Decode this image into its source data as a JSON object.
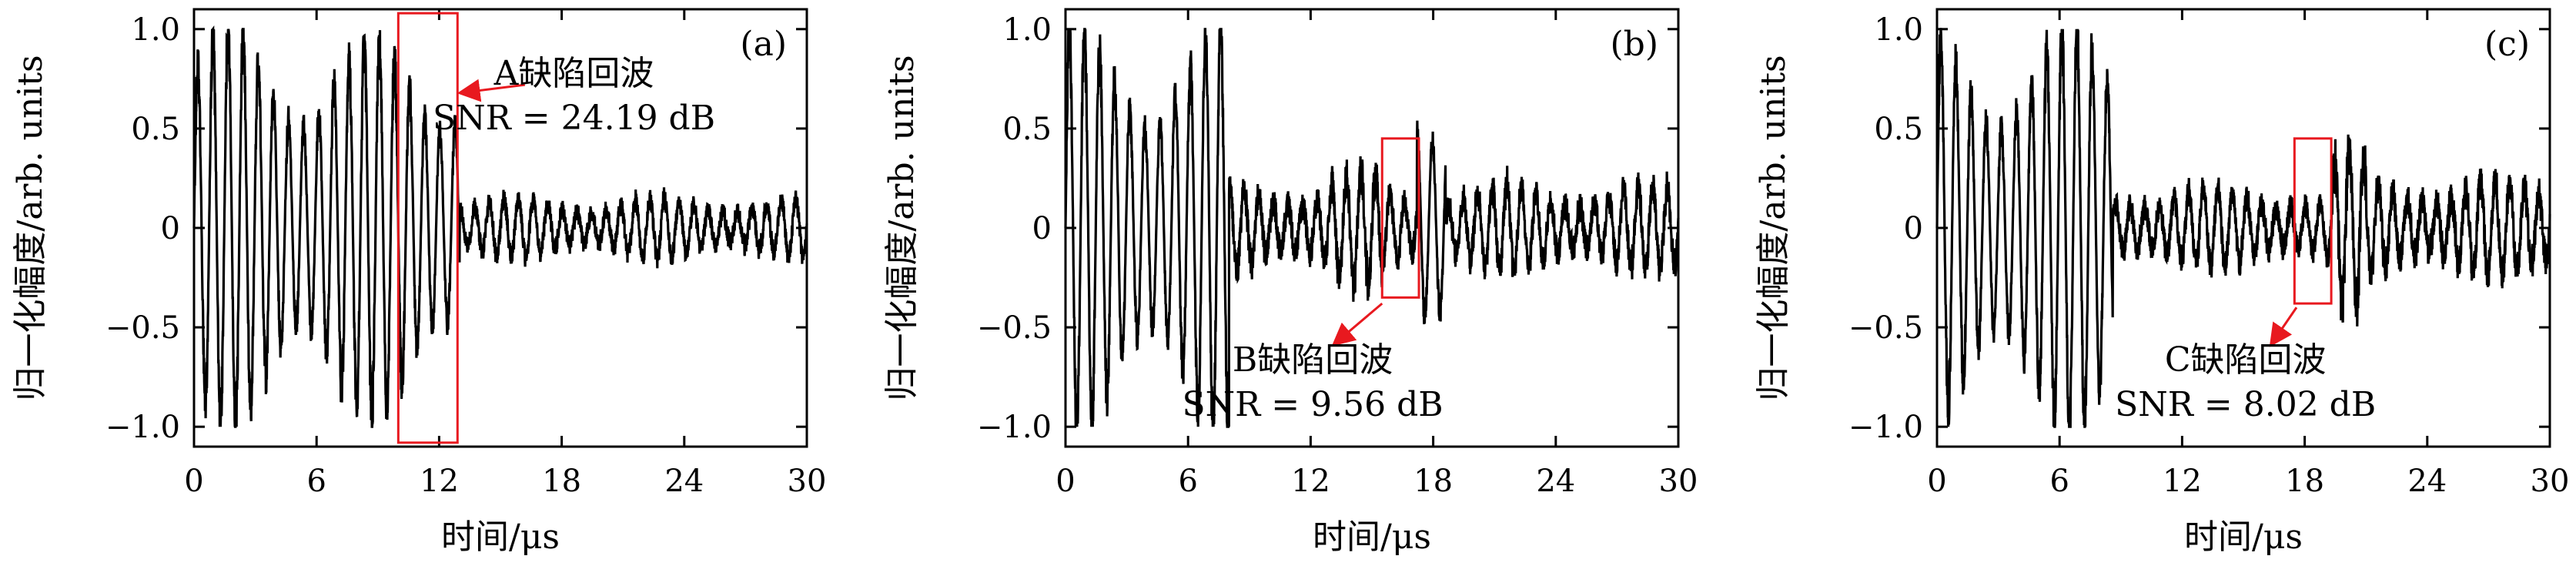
{
  "colors": {
    "signal": "#000000",
    "highlight": "#e8191f",
    "axis": "#000000"
  },
  "chart_data": [
    {
      "type": "line",
      "panel_label": "(a)",
      "xlabel": "时间/μs",
      "ylabel": "归一化幅度/arb. units",
      "xlim": [
        0,
        30
      ],
      "ylim": [
        -1.1,
        1.1
      ],
      "xticks": [
        "0",
        "6",
        "12",
        "18",
        "24",
        "30"
      ],
      "yticks": [
        "−1.0",
        "−0.5",
        "0",
        "0.5",
        "1.0"
      ],
      "signal": {
        "description_points": [
          [
            0.0,
            0.0
          ],
          [
            0.5,
            0.9
          ],
          [
            1.5,
            1.0
          ],
          [
            2.5,
            0.95
          ],
          [
            3.5,
            -0.9
          ],
          [
            4.5,
            0.95
          ],
          [
            5.5,
            0.85
          ],
          [
            6.5,
            0.6
          ],
          [
            7.2,
            0.2
          ],
          [
            8.5,
            0.93
          ],
          [
            9.5,
            0.3
          ],
          [
            11.0,
            0.75
          ],
          [
            11.5,
            0.9
          ],
          [
            12.5,
            0.4
          ],
          [
            14.0,
            0.25
          ],
          [
            16.0,
            0.15
          ],
          [
            20.0,
            0.12
          ],
          [
            24.0,
            0.05
          ],
          [
            30.0,
            0.05
          ]
        ],
        "envelope": [
          {
            "t0": 0.0,
            "t1": 7.5,
            "amp": 1.0,
            "freq": 1.35
          },
          {
            "t0": 7.5,
            "t1": 10.0,
            "amp": 0.93,
            "freq": 1.35
          },
          {
            "t0": 10.0,
            "t1": 13.0,
            "amp": 0.95,
            "freq": 1.35
          },
          {
            "t0": 13.0,
            "t1": 30.0,
            "amp": 0.15,
            "freq": 1.4
          }
        ]
      },
      "highlight_box": {
        "x0": 10.0,
        "x1": 12.9,
        "y0": -1.08,
        "y1": 1.08
      },
      "annotation": {
        "text": "A缺陷回波",
        "snr": "SNR = 24.19 dB",
        "arrow_to": [
          12.9,
          0.75
        ]
      }
    },
    {
      "type": "line",
      "panel_label": "(b)",
      "xlabel": "时间/μs",
      "ylabel": "归一化幅度/arb. units",
      "xlim": [
        0,
        30
      ],
      "ylim": [
        -1.1,
        1.1
      ],
      "xticks": [
        "0",
        "6",
        "12",
        "18",
        "24",
        "30"
      ],
      "yticks": [
        "−1.0",
        "−0.5",
        "0",
        "0.5",
        "1.0"
      ],
      "signal": {
        "envelope": [
          {
            "t0": 0.0,
            "t1": 8.0,
            "amp": 1.0,
            "freq": 1.35
          },
          {
            "t0": 8.0,
            "t1": 13.0,
            "amp": 0.22,
            "freq": 1.4
          },
          {
            "t0": 13.0,
            "t1": 15.5,
            "amp": 0.28,
            "freq": 1.4
          },
          {
            "t0": 15.5,
            "t1": 17.2,
            "amp": 0.2,
            "freq": 1.4
          },
          {
            "t0": 17.2,
            "t1": 18.6,
            "amp": 0.85,
            "freq": 1.35
          },
          {
            "t0": 18.6,
            "t1": 30.0,
            "amp": 0.22,
            "freq": 1.4
          }
        ]
      },
      "highlight_box": {
        "x0": 15.5,
        "x1": 17.3,
        "y0": -0.35,
        "y1": 0.45
      },
      "annotation": {
        "text": "B缺陷回波",
        "snr": "SNR = 9.56 dB",
        "arrow_to": [
          15.5,
          -0.35
        ]
      }
    },
    {
      "type": "line",
      "panel_label": "(c)",
      "xlabel": "时间/μs",
      "ylabel": "归一化幅度/arb. units",
      "xlim": [
        0,
        30
      ],
      "ylim": [
        -1.1,
        1.1
      ],
      "xticks": [
        "0",
        "6",
        "12",
        "18",
        "24",
        "30"
      ],
      "yticks": [
        "−1.0",
        "−0.5",
        "0",
        "0.5",
        "1.0"
      ],
      "signal": {
        "envelope": [
          {
            "t0": 0.0,
            "t1": 8.6,
            "amp": 1.0,
            "freq": 1.35
          },
          {
            "t0": 8.6,
            "t1": 17.5,
            "amp": 0.2,
            "freq": 1.4
          },
          {
            "t0": 17.5,
            "t1": 19.3,
            "amp": 0.18,
            "freq": 1.4
          },
          {
            "t0": 19.3,
            "t1": 21.0,
            "amp": 0.4,
            "freq": 1.4
          },
          {
            "t0": 21.0,
            "t1": 30.0,
            "amp": 0.25,
            "freq": 1.4
          }
        ]
      },
      "highlight_box": {
        "x0": 17.5,
        "x1": 19.3,
        "y0": -0.38,
        "y1": 0.45
      },
      "annotation": {
        "text": "C缺陷回波",
        "snr": "SNR = 8.02 dB",
        "arrow_to": [
          17.6,
          -0.58
        ]
      }
    }
  ]
}
